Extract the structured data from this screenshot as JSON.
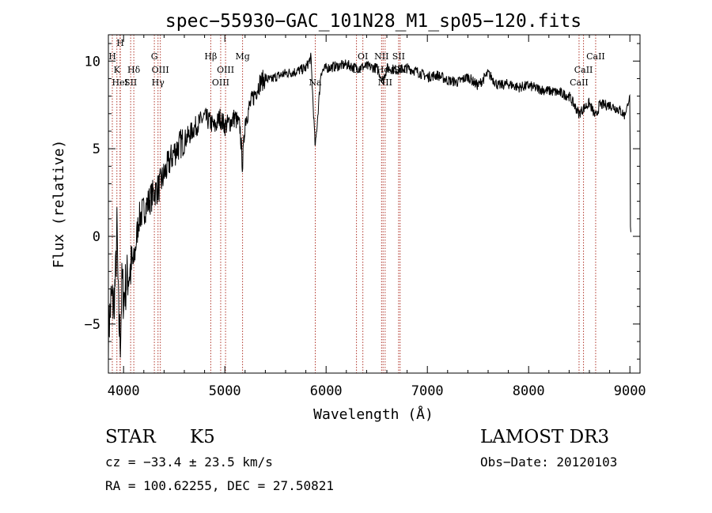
{
  "chart_data": {
    "type": "line",
    "title": "spec−55930−GAC_101N28_M1_sp05−120.fits",
    "xlabel": "Wavelength (Å)",
    "ylabel": "Flux (relative)",
    "xlim": [
      3850,
      9100
    ],
    "ylim": [
      -7.8,
      11.5
    ],
    "xticks": [
      4000,
      5000,
      6000,
      7000,
      8000,
      9000
    ],
    "xtick_labels": [
      "4000",
      "5000",
      "6000",
      "7000",
      "8000",
      "9000"
    ],
    "yticks": [
      -5,
      0,
      5,
      10
    ],
    "ytick_labels": [
      "−5",
      "0",
      "5",
      "10"
    ],
    "series": [
      {
        "name": "flux",
        "x": [
          3850,
          3880,
          3900,
          3920,
          3935,
          3950,
          3968,
          3985,
          4000,
          4030,
          4060,
          4101,
          4150,
          4200,
          4250,
          4300,
          4350,
          4400,
          4450,
          4500,
          4550,
          4600,
          4650,
          4700,
          4750,
          4800,
          4861,
          4900,
          4950,
          5000,
          5050,
          5100,
          5150,
          5175,
          5200,
          5250,
          5300,
          5350,
          5400,
          5450,
          5500,
          5600,
          5700,
          5800,
          5850,
          5893,
          5950,
          6000,
          6100,
          6200,
          6300,
          6400,
          6500,
          6563,
          6600,
          6700,
          6800,
          6900,
          7000,
          7100,
          7200,
          7300,
          7400,
          7500,
          7600,
          7700,
          7800,
          7900,
          8000,
          8100,
          8200,
          8300,
          8400,
          8498,
          8542,
          8600,
          8662,
          8700,
          8800,
          8900,
          8950,
          9000,
          9005,
          9010
        ],
        "y": [
          -5.5,
          -3.5,
          -4.0,
          -2.5,
          0.5,
          -4.5,
          -6.0,
          -2.5,
          -3.5,
          -2.5,
          -2.0,
          -1.5,
          1.0,
          1.5,
          2.0,
          2.5,
          2.8,
          3.5,
          4.2,
          4.8,
          5.2,
          5.5,
          5.8,
          6.2,
          6.5,
          6.8,
          6.5,
          6.2,
          6.8,
          6.3,
          6.5,
          6.8,
          6.2,
          4.0,
          6.6,
          7.5,
          8.2,
          8.8,
          9.0,
          8.9,
          9.1,
          9.3,
          9.4,
          9.6,
          10.2,
          5.0,
          9.4,
          9.6,
          9.7,
          9.8,
          9.6,
          9.7,
          9.6,
          8.9,
          9.6,
          9.5,
          9.6,
          9.4,
          9.1,
          9.2,
          8.9,
          8.8,
          9.1,
          8.6,
          9.3,
          8.6,
          8.7,
          8.5,
          8.6,
          8.4,
          8.3,
          8.2,
          8.0,
          7.0,
          7.3,
          7.6,
          6.8,
          7.5,
          7.5,
          7.2,
          6.9,
          8.0,
          0.5,
          0.0
        ]
      }
    ],
    "lines": [
      {
        "wavelength": 3889,
        "label": "H",
        "row": 1
      },
      {
        "wavelength": 3934,
        "label": "K",
        "row": 2
      },
      {
        "wavelength": 3965,
        "label": "HeI",
        "row": 3
      },
      {
        "wavelength": 3968,
        "label": "H",
        "row": 0
      },
      {
        "wavelength": 4070,
        "label": "SII",
        "row": 3
      },
      {
        "wavelength": 4101,
        "label": "Hδ",
        "row": 2
      },
      {
        "wavelength": 4304,
        "label": "G",
        "row": 1
      },
      {
        "wavelength": 4340,
        "label": "Hγ",
        "row": 3
      },
      {
        "wavelength": 4363,
        "label": "OIII",
        "row": 2
      },
      {
        "wavelength": 4861,
        "label": "Hβ",
        "row": 1
      },
      {
        "wavelength": 4959,
        "label": "OIII",
        "row": 3
      },
      {
        "wavelength": 5007,
        "label": "OIII",
        "row": 2
      },
      {
        "wavelength": 5175,
        "label": "Mg",
        "row": 1
      },
      {
        "wavelength": 5893,
        "label": "Na",
        "row": 3
      },
      {
        "wavelength": 6300,
        "label": "OI",
        "row": 2
      },
      {
        "wavelength": 6363,
        "label": "OI",
        "row": 1
      },
      {
        "wavelength": 6548,
        "label": "NII",
        "row": 1
      },
      {
        "wavelength": 6563,
        "label": "Hα",
        "row": 2
      },
      {
        "wavelength": 6583,
        "label": "NII",
        "row": 3
      },
      {
        "wavelength": 6716,
        "label": "SII",
        "row": 1
      },
      {
        "wavelength": 6731,
        "label": "SII",
        "row": 2
      },
      {
        "wavelength": 8498,
        "label": "CaII",
        "row": 3
      },
      {
        "wavelength": 8542,
        "label": "CaII",
        "row": 2
      },
      {
        "wavelength": 8662,
        "label": "CaII",
        "row": 1
      }
    ]
  },
  "info": {
    "class_label": "STAR",
    "subclass": "K5",
    "survey": "LAMOST DR3",
    "cz": "cz = −33.4 ± 23.5 km/s",
    "obs_date": "Obs−Date: 20120103",
    "coords": "RA = 100.62255, DEC =  27.50821"
  }
}
